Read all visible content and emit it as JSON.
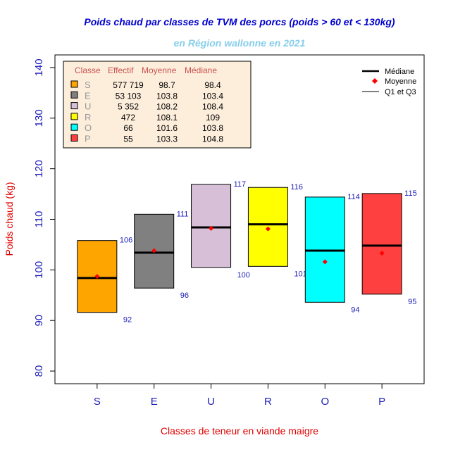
{
  "chart_data": {
    "type": "boxplot",
    "title": "Poids chaud par classes de TVM des porcs (poids > 60 et < 130kg)",
    "subtitle": "en Région wallonne en 2021",
    "xlabel": "Classes de teneur en viande maigre",
    "ylabel": "Poids chaud (kg)",
    "ylim": [
      80,
      140
    ],
    "yticks": [
      80,
      90,
      100,
      110,
      120,
      130,
      140
    ],
    "categories": [
      "S",
      "E",
      "U",
      "R",
      "O",
      "P"
    ],
    "colors": [
      "#FFA500",
      "#808080",
      "#D8BFD8",
      "#FFFF00",
      "#00FFFF",
      "#FF4040"
    ],
    "q1": [
      91.6,
      96.4,
      100.5,
      100.7,
      93.6,
      95.2
    ],
    "q3": [
      105.8,
      111.0,
      116.9,
      116.3,
      114.4,
      115.1
    ],
    "q1_labels": [
      "92",
      "96",
      "100",
      "101",
      "94",
      "95"
    ],
    "q3_labels": [
      "106",
      "111",
      "117",
      "116",
      "114",
      "115"
    ],
    "median": [
      98.4,
      103.4,
      108.4,
      109,
      103.8,
      104.8
    ],
    "mean": [
      98.7,
      103.8,
      108.2,
      108.1,
      101.6,
      103.3
    ],
    "legend": {
      "position": "top-right",
      "entries": [
        "Médiane",
        "Moyenne",
        "Q1 et Q3"
      ]
    },
    "table": {
      "position": "top-left",
      "headers": [
        "Classe",
        "Effectif",
        "Moyenne",
        "Médiane"
      ],
      "rows": [
        [
          "S",
          "577 719",
          "98.7",
          "98.4"
        ],
        [
          "E",
          "53 103",
          "103.8",
          "103.4"
        ],
        [
          "U",
          "5 352",
          "108.2",
          "108.4"
        ],
        [
          "R",
          "472",
          "108.1",
          "109"
        ],
        [
          "O",
          "66",
          "101.6",
          "103.8"
        ],
        [
          "P",
          "55",
          "103.3",
          "104.8"
        ]
      ],
      "background": "#FDEEDC"
    },
    "title_color": "#0000CD",
    "subtitle_color": "#87CEEB",
    "axis_label_color": "#E00000",
    "tick_color": "#1C1CB8",
    "mean_color": "#FF0000"
  }
}
